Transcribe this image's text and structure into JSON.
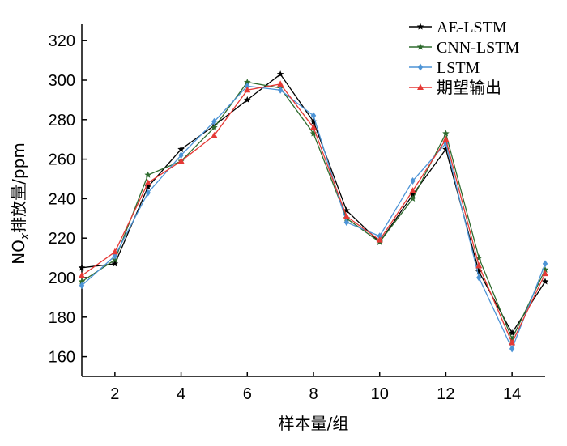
{
  "chart_data": {
    "type": "line",
    "xlabel": "样本量/组",
    "ylabel": {
      "prefix": "NO",
      "sub": "x",
      "rest": "排放量/ppm"
    },
    "xlim": [
      1,
      15
    ],
    "ylim": [
      150,
      325
    ],
    "x_ticks": [
      2,
      4,
      6,
      8,
      10,
      12,
      14
    ],
    "y_ticks": [
      160,
      180,
      200,
      220,
      240,
      260,
      280,
      300,
      320
    ],
    "legend_position": "top-right",
    "x": [
      1,
      2,
      3,
      4,
      5,
      6,
      7,
      8,
      9,
      10,
      11,
      12,
      13,
      14,
      15
    ],
    "series": [
      {
        "name": "AE-LSTM",
        "color": "#000000",
        "marker": "star",
        "values": [
          205,
          207,
          246,
          265,
          277,
          290,
          303,
          279,
          234,
          218,
          242,
          265,
          203,
          172,
          198
        ]
      },
      {
        "name": "CNN-LSTM",
        "color": "#2e6b2e",
        "marker": "star",
        "values": [
          198,
          209,
          252,
          259,
          276,
          299,
          296,
          273,
          230,
          218,
          240,
          273,
          210,
          169,
          204
        ]
      },
      {
        "name": "LSTM",
        "color": "#4d94d6",
        "marker": "diamond",
        "values": [
          196,
          211,
          243,
          262,
          279,
          297,
          295,
          282,
          228,
          221,
          249,
          268,
          200,
          164,
          207
        ]
      },
      {
        "name": "期望输出",
        "color": "#e53935",
        "marker": "triangle",
        "values": [
          201,
          213,
          248,
          259,
          272,
          295,
          298,
          276,
          231,
          219,
          244,
          270,
          206,
          167,
          202
        ]
      }
    ]
  }
}
